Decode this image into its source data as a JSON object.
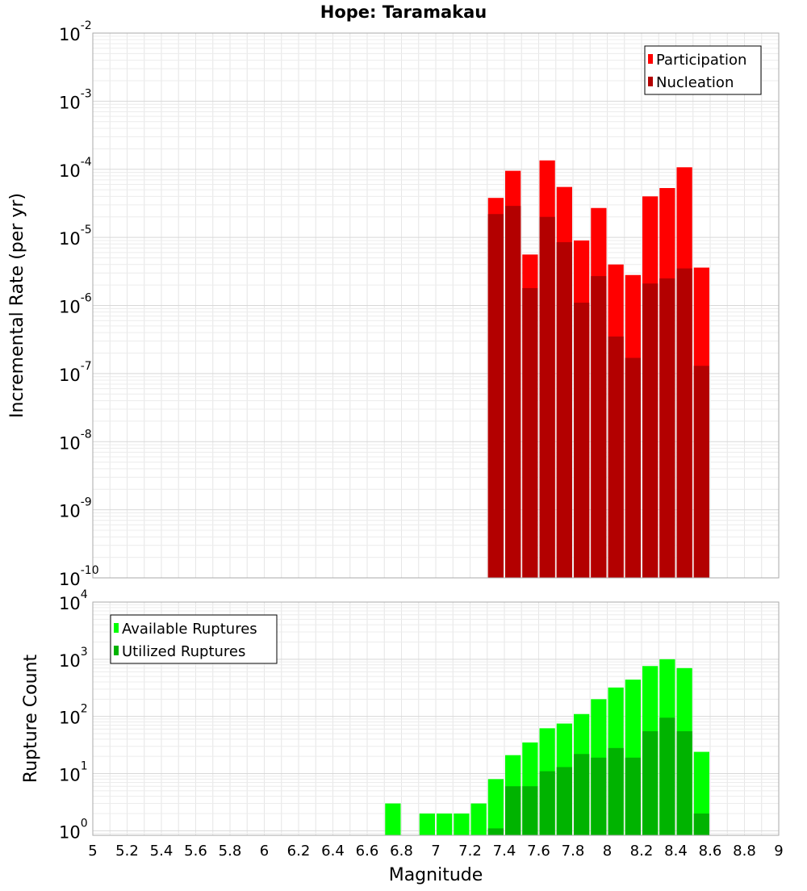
{
  "chart_data": {
    "type": "bar",
    "title": "Hope: Taramakau",
    "xlabel": "Magnitude",
    "x_ticks": [
      "5",
      "5.2",
      "5.4",
      "5.6",
      "5.8",
      "6",
      "6.2",
      "6.4",
      "6.6",
      "6.8",
      "7",
      "7.2",
      "7.4",
      "7.6",
      "7.8",
      "8",
      "8.2",
      "8.4",
      "8.6",
      "8.8",
      "9"
    ],
    "x_tick_values": [
      5.0,
      5.2,
      5.4,
      5.6,
      5.8,
      6.0,
      6.2,
      6.4,
      6.6,
      6.8,
      7.0,
      7.2,
      7.4,
      7.6,
      7.8,
      8.0,
      8.2,
      8.4,
      8.6,
      8.8,
      9.0
    ],
    "xlim": [
      5,
      9
    ],
    "bin_width": 0.1,
    "panels": [
      {
        "ylabel": "Incremental Rate (per yr)",
        "yscale": "log",
        "ylim_exponents": [
          -10,
          -2
        ],
        "y_tick_exponents": [
          "-10",
          "-9",
          "-8",
          "-7",
          "-6",
          "-5",
          "-4",
          "-3",
          "-2"
        ],
        "y_tick_base": "10",
        "legend": {
          "position": "top-right",
          "entries": [
            "Participation",
            "Nucleation"
          ]
        },
        "series": [
          {
            "name": "Participation",
            "color": "#ff0000",
            "x": [
              7.35,
              7.45,
              7.55,
              7.65,
              7.75,
              7.85,
              7.95,
              8.05,
              8.15,
              8.25,
              8.35,
              8.45,
              8.55
            ],
            "values": [
              3.8e-05,
              9.5e-05,
              5.6e-06,
              0.000135,
              5.5e-05,
              9e-06,
              2.7e-05,
              4e-06,
              2.8e-06,
              4e-05,
              5.3e-05,
              0.000107,
              3.6e-06
            ]
          },
          {
            "name": "Nucleation",
            "color": "#b30000",
            "x": [
              7.35,
              7.45,
              7.55,
              7.65,
              7.75,
              7.85,
              7.95,
              8.05,
              8.15,
              8.25,
              8.35,
              8.45,
              8.55
            ],
            "values": [
              2.2e-05,
              2.9e-05,
              1.8e-06,
              2e-05,
              8.5e-06,
              1.1e-06,
              2.7e-06,
              3.5e-07,
              1.7e-07,
              2.1e-06,
              2.5e-06,
              3.5e-06,
              1.3e-07
            ]
          }
        ]
      },
      {
        "ylabel": "Rupture Count",
        "yscale": "log",
        "ylim_exponents": [
          -0.08,
          4
        ],
        "y_tick_exponents": [
          "0",
          "1",
          "2",
          "3",
          "4"
        ],
        "y_tick_base": "10",
        "legend": {
          "position": "top-left",
          "entries": [
            "Available Ruptures",
            "Utilized Ruptures"
          ]
        },
        "series": [
          {
            "name": "Available Ruptures",
            "color": "#00ff00",
            "x": [
              6.75,
              6.95,
              7.05,
              7.15,
              7.25,
              7.35,
              7.45,
              7.55,
              7.65,
              7.75,
              7.85,
              7.95,
              8.05,
              8.15,
              8.25,
              8.35,
              8.45,
              8.55
            ],
            "values": [
              3,
              2,
              2,
              2,
              3,
              8,
              21,
              35,
              62,
              75,
              110,
              200,
              320,
              440,
              760,
              1000,
              700,
              24
            ]
          },
          {
            "name": "Utilized Ruptures",
            "color": "#00b300",
            "x": [
              7.35,
              7.45,
              7.55,
              7.65,
              7.75,
              7.85,
              7.95,
              8.05,
              8.15,
              8.25,
              8.35,
              8.45,
              8.55
            ],
            "values": [
              1.1,
              6,
              6,
              11,
              13,
              22,
              19,
              28,
              19,
              55,
              95,
              55,
              2
            ]
          }
        ]
      }
    ]
  }
}
